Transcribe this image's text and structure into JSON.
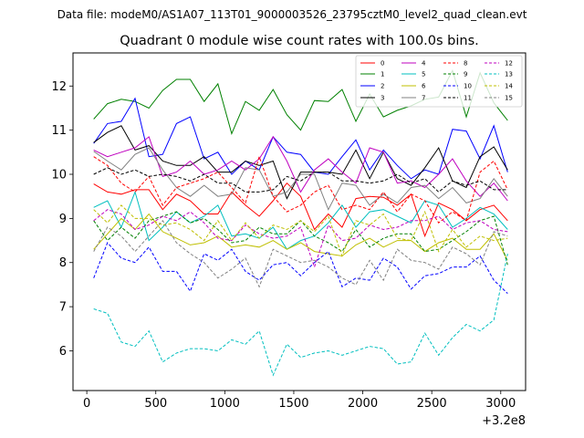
{
  "chart_data": {
    "type": "line",
    "suptitle": "Data file: modeM0/AS1A07_113T01_9000003526_23795cztM0_level2_quad_clean.evt",
    "title": "Quadrant 0 module wise count rates with 100.0s bins.",
    "xlabel": "",
    "ylabel": "",
    "x_offset_label": "+3.2e8",
    "xlim": [
      -100,
      3180
    ],
    "ylim": [
      5.1,
      12.75
    ],
    "xticks": [
      0,
      500,
      1000,
      1500,
      2000,
      2500,
      3000
    ],
    "yticks": [
      6,
      7,
      8,
      9,
      10,
      11,
      12
    ],
    "legend_position": "top-right",
    "x": [
      50,
      150,
      250,
      350,
      450,
      550,
      650,
      750,
      850,
      950,
      1050,
      1150,
      1250,
      1350,
      1450,
      1550,
      1650,
      1750,
      1850,
      1950,
      2050,
      2150,
      2250,
      2350,
      2450,
      2550,
      2650,
      2750,
      2850,
      2950,
      3050
    ],
    "series": [
      {
        "name": "0",
        "color": "#ff0000",
        "dash": "solid",
        "values": [
          9.78,
          9.6,
          9.55,
          9.65,
          9.65,
          9.2,
          9.55,
          9.4,
          9.1,
          9.1,
          9.6,
          9.3,
          9.05,
          9.4,
          9.8,
          9.5,
          8.75,
          9.1,
          8.8,
          9.45,
          9.5,
          9.48,
          9.3,
          9.55,
          8.6,
          9.35,
          9.2,
          8.95,
          9.2,
          9.3,
          8.95
        ]
      },
      {
        "name": "1",
        "color": "#008000",
        "dash": "solid",
        "values": [
          11.25,
          11.6,
          11.7,
          11.65,
          11.5,
          11.9,
          12.15,
          12.15,
          11.65,
          12.05,
          10.92,
          11.65,
          11.45,
          11.92,
          11.35,
          11.0,
          11.67,
          11.65,
          11.92,
          11.2,
          11.82,
          11.3,
          11.45,
          11.55,
          11.7,
          11.75,
          12.35,
          11.3,
          12.3,
          11.62,
          11.22
        ]
      },
      {
        "name": "2",
        "color": "#0000ff",
        "dash": "solid",
        "values": [
          10.7,
          11.15,
          11.2,
          11.72,
          10.4,
          10.45,
          11.15,
          11.3,
          10.35,
          10.5,
          10.0,
          10.3,
          10.1,
          10.85,
          10.5,
          10.45,
          10.05,
          10.0,
          10.4,
          10.78,
          10.1,
          10.55,
          10.2,
          9.9,
          10.1,
          10.0,
          11.02,
          10.98,
          10.35,
          11.1,
          10.05
        ]
      },
      {
        "name": "3",
        "color": "#000000",
        "dash": "solid",
        "values": [
          10.72,
          10.95,
          11.1,
          10.55,
          10.65,
          10.3,
          10.2,
          10.2,
          10.4,
          10.05,
          10.05,
          10.3,
          10.2,
          10.3,
          9.45,
          10.05,
          10.05,
          10.05,
          10.0,
          10.55,
          9.9,
          10.5,
          9.9,
          9.75,
          10.15,
          10.6,
          9.85,
          9.7,
          10.4,
          10.62,
          10.1
        ]
      },
      {
        "name": "4",
        "color": "#bf00bf",
        "dash": "solid",
        "values": [
          10.55,
          10.4,
          10.5,
          10.6,
          10.85,
          9.95,
          10.05,
          10.3,
          10.0,
          10.1,
          10.3,
          10.1,
          10.35,
          10.85,
          10.3,
          9.6,
          10.1,
          10.35,
          10.05,
          9.8,
          10.6,
          10.5,
          9.8,
          9.85,
          9.7,
          10.0,
          10.35,
          9.85,
          9.5,
          9.8,
          9.4
        ]
      },
      {
        "name": "5",
        "color": "#00bfbf",
        "dash": "solid",
        "values": [
          9.25,
          9.4,
          8.8,
          9.6,
          8.5,
          8.8,
          9.15,
          8.9,
          9.05,
          9.3,
          8.6,
          8.65,
          8.55,
          8.8,
          8.3,
          8.5,
          8.6,
          8.9,
          9.3,
          8.8,
          9.15,
          9.2,
          9.05,
          8.9,
          9.4,
          9.3,
          8.8,
          9.0,
          9.25,
          9.1,
          8.75
        ]
      },
      {
        "name": "6",
        "color": "#bfbf00",
        "dash": "solid",
        "values": [
          8.3,
          8.65,
          9.0,
          8.75,
          9.1,
          8.7,
          8.55,
          8.4,
          8.45,
          8.6,
          8.35,
          8.4,
          8.35,
          8.5,
          8.3,
          8.45,
          8.25,
          8.2,
          8.15,
          8.4,
          8.55,
          8.35,
          8.5,
          8.5,
          8.25,
          8.45,
          8.55,
          8.3,
          8.3,
          8.65,
          8.05
        ]
      },
      {
        "name": "7",
        "color": "#808080",
        "dash": "solid",
        "values": [
          10.52,
          10.3,
          10.1,
          10.45,
          10.6,
          10.1,
          9.7,
          9.5,
          9.75,
          9.5,
          9.55,
          10.15,
          10.1,
          9.5,
          9.6,
          10.0,
          10.0,
          9.2,
          9.8,
          9.75,
          9.3,
          9.55,
          9.35,
          9.7,
          9.75,
          9.45,
          9.7,
          9.35,
          9.45,
          9.9,
          9.5
        ]
      },
      {
        "name": "8",
        "color": "#ff0000",
        "dash": "dashed",
        "values": [
          10.4,
          10.2,
          9.8,
          9.6,
          9.95,
          9.3,
          9.7,
          9.8,
          9.9,
          10.05,
          9.7,
          9.35,
          10.4,
          9.5,
          9.15,
          9.3,
          9.6,
          9.75,
          9.2,
          9.3,
          9.2,
          9.6,
          9.15,
          9.55,
          9.4,
          8.9,
          9.15,
          8.95,
          10.05,
          10.3,
          9.65
        ]
      },
      {
        "name": "9",
        "color": "#008000",
        "dash": "dashed",
        "values": [
          8.95,
          8.5,
          8.8,
          8.55,
          8.95,
          9.05,
          9.15,
          8.9,
          9.0,
          8.75,
          8.45,
          8.5,
          8.8,
          8.65,
          8.65,
          8.95,
          8.6,
          8.45,
          8.25,
          8.75,
          8.35,
          8.55,
          8.65,
          8.65,
          8.25,
          8.3,
          8.5,
          8.7,
          8.95,
          9.05,
          7.95
        ]
      },
      {
        "name": "10",
        "color": "#0000ff",
        "dash": "dashed",
        "values": [
          7.65,
          8.45,
          8.1,
          8.0,
          8.35,
          7.8,
          7.8,
          7.35,
          8.2,
          8.05,
          8.3,
          7.8,
          7.6,
          7.95,
          8.0,
          7.7,
          8.0,
          8.25,
          7.45,
          7.65,
          7.6,
          8.1,
          7.9,
          7.4,
          7.7,
          7.75,
          7.9,
          7.9,
          8.15,
          7.6,
          7.3
        ]
      },
      {
        "name": "11",
        "color": "#000000",
        "dash": "dashed",
        "values": [
          10.0,
          10.15,
          10.0,
          10.1,
          9.95,
          10.0,
          9.95,
          9.85,
          10.0,
          9.8,
          9.8,
          9.6,
          9.6,
          9.65,
          9.95,
          9.85,
          10.05,
          10.05,
          9.85,
          9.85,
          9.8,
          9.85,
          10.0,
          9.8,
          9.9,
          9.6,
          9.85,
          9.75,
          9.85,
          9.65,
          9.65
        ]
      },
      {
        "name": "12",
        "color": "#bf00bf",
        "dash": "dashed",
        "values": [
          8.95,
          9.2,
          9.1,
          8.75,
          8.85,
          9.05,
          8.95,
          9.15,
          8.9,
          8.55,
          8.5,
          8.85,
          8.65,
          8.55,
          8.6,
          8.8,
          7.9,
          8.85,
          8.5,
          8.55,
          8.85,
          8.75,
          8.8,
          8.95,
          8.95,
          9.05,
          8.75,
          8.9,
          8.95,
          8.75,
          8.7
        ]
      },
      {
        "name": "13",
        "color": "#00bfbf",
        "dash": "dashed",
        "values": [
          6.95,
          6.85,
          6.2,
          6.1,
          6.45,
          5.75,
          5.95,
          6.05,
          6.05,
          6.0,
          6.25,
          6.15,
          6.45,
          5.45,
          6.15,
          5.85,
          5.95,
          6.0,
          5.9,
          6.0,
          6.1,
          6.05,
          5.7,
          5.75,
          6.4,
          5.9,
          6.3,
          6.6,
          6.45,
          6.7,
          8.2
        ]
      },
      {
        "name": "14",
        "color": "#bfbf00",
        "dash": "dashed",
        "values": [
          9.2,
          8.9,
          9.3,
          9.0,
          9.0,
          8.85,
          8.9,
          8.75,
          8.5,
          8.95,
          8.5,
          8.9,
          8.55,
          8.85,
          8.75,
          8.95,
          8.7,
          9.05,
          8.15,
          8.95,
          8.85,
          9.1,
          8.55,
          8.5,
          9.15,
          8.25,
          8.75,
          8.35,
          8.6,
          8.5,
          8.55
        ]
      },
      {
        "name": "15",
        "color": "#808080",
        "dash": "dashed",
        "values": [
          8.25,
          8.8,
          8.6,
          8.25,
          8.6,
          8.95,
          8.45,
          8.2,
          8.0,
          7.65,
          7.85,
          8.1,
          7.45,
          8.3,
          8.15,
          8.0,
          8.05,
          7.9,
          7.65,
          7.5,
          8.05,
          7.6,
          8.3,
          8.05,
          8.0,
          7.85,
          8.35,
          8.2,
          7.95,
          8.7,
          8.6
        ]
      }
    ]
  }
}
